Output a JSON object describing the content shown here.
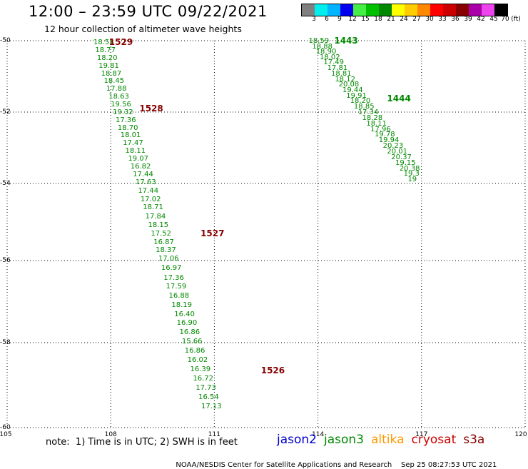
{
  "header": {
    "title": "12:00 – 23:59 UTC 09/22/2021",
    "subtitle": "12 hour collection of altimeter wave heights"
  },
  "scale": {
    "unit": "(ft)",
    "labels": [
      "3",
      "6",
      "9",
      "12",
      "15",
      "18",
      "21",
      "24",
      "27",
      "30",
      "33",
      "36",
      "39",
      "42",
      "45",
      "70"
    ],
    "colors": [
      "#808080",
      "#00eeee",
      "#00b4ff",
      "#0000ee",
      "#44ee44",
      "#00c000",
      "#008800",
      "#ffff00",
      "#ffcc00",
      "#ff8800",
      "#ff0000",
      "#cc0000",
      "#880000",
      "#aa00aa",
      "#ee44ee",
      "#000000"
    ]
  },
  "axes": {
    "lat_labels": [
      "-50",
      "-52",
      "-54",
      "-56",
      "-58",
      "-60"
    ],
    "lon_labels": [
      "105",
      "108",
      "111",
      "114",
      "117",
      "120"
    ]
  },
  "tracks": [
    {
      "satellite": "jason3",
      "color": "#008800",
      "time_labels": [
        {
          "text": "1529",
          "color": "#880000",
          "lon": 107.95,
          "lat": -50.03
        },
        {
          "text": "1528",
          "color": "#880000",
          "lon": 108.83,
          "lat": -51.89
        },
        {
          "text": "1527",
          "color": "#880000",
          "lon": 110.6,
          "lat": -55.3
        },
        {
          "text": "1526",
          "color": "#880000",
          "lon": 112.35,
          "lat": -58.65
        }
      ],
      "points": [
        {
          "v": "18.58",
          "lon": 107.5,
          "lat": -50.03
        },
        {
          "v": "18.77",
          "lon": 107.55,
          "lat": -50.25
        },
        {
          "v": "18.20",
          "lon": 107.6,
          "lat": -50.47
        },
        {
          "v": "19.81",
          "lon": 107.65,
          "lat": -50.69
        },
        {
          "v": "18.87",
          "lon": 107.72,
          "lat": -50.91
        },
        {
          "v": "18.45",
          "lon": 107.8,
          "lat": -51.12
        },
        {
          "v": "17.88",
          "lon": 107.87,
          "lat": -51.33
        },
        {
          "v": "18.63",
          "lon": 107.94,
          "lat": -51.55
        },
        {
          "v": "19.56",
          "lon": 108.0,
          "lat": -51.77
        },
        {
          "v": "19.32",
          "lon": 108.06,
          "lat": -51.99
        },
        {
          "v": "17.36",
          "lon": 108.14,
          "lat": -52.21
        },
        {
          "v": "18.70",
          "lon": 108.2,
          "lat": -52.43
        },
        {
          "v": "18.01",
          "lon": 108.28,
          "lat": -52.64
        },
        {
          "v": "17.47",
          "lon": 108.35,
          "lat": -52.85
        },
        {
          "v": "18.11",
          "lon": 108.42,
          "lat": -53.07
        },
        {
          "v": "19.07",
          "lon": 108.5,
          "lat": -53.3
        },
        {
          "v": "16.82",
          "lon": 108.57,
          "lat": -53.52
        },
        {
          "v": "17.44",
          "lon": 108.64,
          "lat": -53.74
        },
        {
          "v": "17.63",
          "lon": 108.72,
          "lat": -53.96
        },
        {
          "v": "17.44",
          "lon": 108.79,
          "lat": -54.18
        },
        {
          "v": "17.02",
          "lon": 108.86,
          "lat": -54.4
        },
        {
          "v": "18.71",
          "lon": 108.93,
          "lat": -54.62
        },
        {
          "v": "17.84",
          "lon": 109.0,
          "lat": -54.85
        },
        {
          "v": "18.15",
          "lon": 109.08,
          "lat": -55.07
        },
        {
          "v": "17.52",
          "lon": 109.16,
          "lat": -55.29
        },
        {
          "v": "16.87",
          "lon": 109.24,
          "lat": -55.51
        },
        {
          "v": "18.37",
          "lon": 109.3,
          "lat": -55.73
        },
        {
          "v": "17.06",
          "lon": 109.38,
          "lat": -55.95
        },
        {
          "v": "16.97",
          "lon": 109.46,
          "lat": -56.18
        },
        {
          "v": "17.36",
          "lon": 109.53,
          "lat": -56.41
        },
        {
          "v": "17.59",
          "lon": 109.6,
          "lat": -56.63
        },
        {
          "v": "16.88",
          "lon": 109.68,
          "lat": -56.85
        },
        {
          "v": "18.19",
          "lon": 109.76,
          "lat": -57.07
        },
        {
          "v": "16.40",
          "lon": 109.84,
          "lat": -57.3
        },
        {
          "v": "16.90",
          "lon": 109.91,
          "lat": -57.52
        },
        {
          "v": "16.86",
          "lon": 109.99,
          "lat": -57.74
        },
        {
          "v": "15.66",
          "lon": 110.06,
          "lat": -57.96
        },
        {
          "v": "16.86",
          "lon": 110.14,
          "lat": -58.18
        },
        {
          "v": "16.02",
          "lon": 110.22,
          "lat": -58.4
        },
        {
          "v": "16.39",
          "lon": 110.3,
          "lat": -58.62
        },
        {
          "v": "16.72",
          "lon": 110.38,
          "lat": -58.84
        },
        {
          "v": "17.73",
          "lon": 110.46,
          "lat": -59.06
        },
        {
          "v": "16.54",
          "lon": 110.54,
          "lat": -59.28
        },
        {
          "v": "17.13",
          "lon": 110.62,
          "lat": -59.5
        }
      ]
    },
    {
      "satellite": "jason3",
      "color": "#008800",
      "time_labels": [
        {
          "text": "1443",
          "color": "#008800",
          "lon": 114.47,
          "lat": -50.0
        },
        {
          "text": "1444",
          "color": "#008800",
          "lon": 116.0,
          "lat": -51.62
        }
      ],
      "points": [
        {
          "v": "18.59",
          "lon": 113.73,
          "lat": -50.0
        },
        {
          "v": "18.88",
          "lon": 113.83,
          "lat": -50.15
        },
        {
          "v": "18.90",
          "lon": 113.94,
          "lat": -50.3
        },
        {
          "v": "18.02",
          "lon": 114.05,
          "lat": -50.45
        },
        {
          "v": "17.49",
          "lon": 114.16,
          "lat": -50.6
        },
        {
          "v": "17.81",
          "lon": 114.27,
          "lat": -50.76
        },
        {
          "v": "18.81",
          "lon": 114.38,
          "lat": -50.91
        },
        {
          "v": "18.12",
          "lon": 114.49,
          "lat": -51.07
        },
        {
          "v": "20.08",
          "lon": 114.6,
          "lat": -51.22
        },
        {
          "v": "19.44",
          "lon": 114.71,
          "lat": -51.37
        },
        {
          "v": "19.91",
          "lon": 114.82,
          "lat": -51.53
        },
        {
          "v": "18.20",
          "lon": 114.93,
          "lat": -51.68
        },
        {
          "v": "18.85",
          "lon": 115.04,
          "lat": -51.84
        },
        {
          "v": "17.34",
          "lon": 115.16,
          "lat": -51.99
        },
        {
          "v": "18.28",
          "lon": 115.28,
          "lat": -52.15
        },
        {
          "v": "18.11",
          "lon": 115.4,
          "lat": -52.31
        },
        {
          "v": "17.96",
          "lon": 115.52,
          "lat": -52.47
        },
        {
          "v": "19.78",
          "lon": 115.64,
          "lat": -52.62
        },
        {
          "v": "19.94",
          "lon": 115.76,
          "lat": -52.78
        },
        {
          "v": "20.23",
          "lon": 115.88,
          "lat": -52.94
        },
        {
          "v": "20.01",
          "lon": 116.0,
          "lat": -53.1
        },
        {
          "v": "20.37",
          "lon": 116.12,
          "lat": -53.25
        },
        {
          "v": "19.15",
          "lon": 116.24,
          "lat": -53.41
        },
        {
          "v": "20.38",
          "lon": 116.36,
          "lat": -53.57
        },
        {
          "v": "19.3",
          "lon": 116.48,
          "lat": -53.72
        },
        {
          "v": "19",
          "lon": 116.6,
          "lat": -53.88
        }
      ]
    }
  ],
  "footer": {
    "note": "note:  1) Time is in UTC; 2) SWH is in feet",
    "satellites": [
      {
        "name": "jason2",
        "color": "#0000cc"
      },
      {
        "name": "jason3",
        "color": "#008800"
      },
      {
        "name": "altika",
        "color": "#ff9900"
      },
      {
        "name": "cryosat",
        "color": "#cc0000"
      },
      {
        "name": "s3a",
        "color": "#880000"
      }
    ],
    "credit": "NOAA/NESDIS Center for Satellite Applications and Research",
    "timestamp": "Sep 25 08:27:53 UTC 2021"
  }
}
